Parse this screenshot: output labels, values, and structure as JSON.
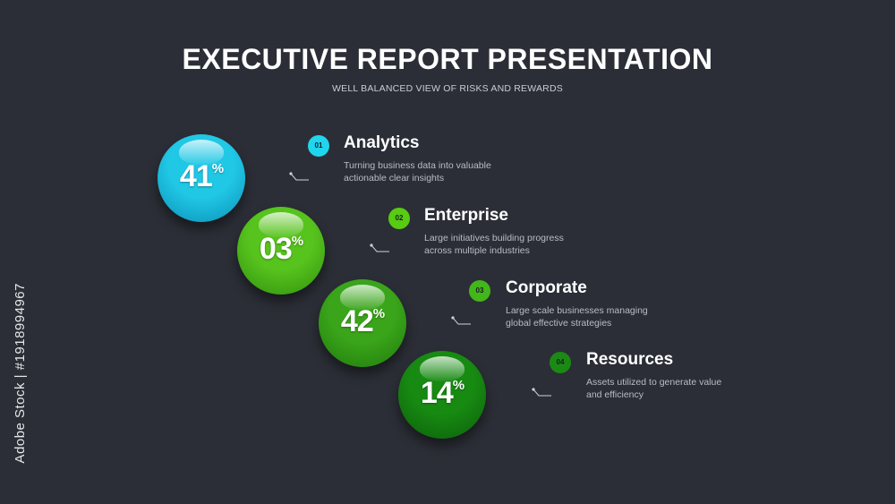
{
  "title": "EXECUTIVE REPORT PRESENTATION",
  "subtitle": "WELL BALANCED VIEW OF RISKS AND REWARDS",
  "percent_sign": "%",
  "items": [
    {
      "number": "01",
      "value": "41",
      "title": "Analytics",
      "line1": "Turning business data into valuable",
      "line2": "actionable clear insights",
      "color": "#21c8e6",
      "color_dark": "#0a8fb6",
      "badge_color": "#1fd6ee"
    },
    {
      "number": "02",
      "value": "03",
      "title": "Enterprise",
      "line1": "Large initiatives building progress",
      "line2": "across multiple industries",
      "color": "#57c31d",
      "color_dark": "#2f8f0e",
      "badge_color": "#57cc12"
    },
    {
      "number": "03",
      "value": "42",
      "title": "Corporate",
      "line1": "Large scale businesses managing",
      "line2": "global effective strategies",
      "color": "#3aa51a",
      "color_dark": "#1f7a0c",
      "badge_color": "#42b61a"
    },
    {
      "number": "04",
      "value": "14",
      "title": "Resources",
      "line1": "Assets utilized to generate value",
      "line2": "and efficiency",
      "color": "#178a12",
      "color_dark": "#0c5e0a",
      "badge_color": "#1b8a14"
    }
  ],
  "watermark": "Adobe Stock | #1918994967"
}
